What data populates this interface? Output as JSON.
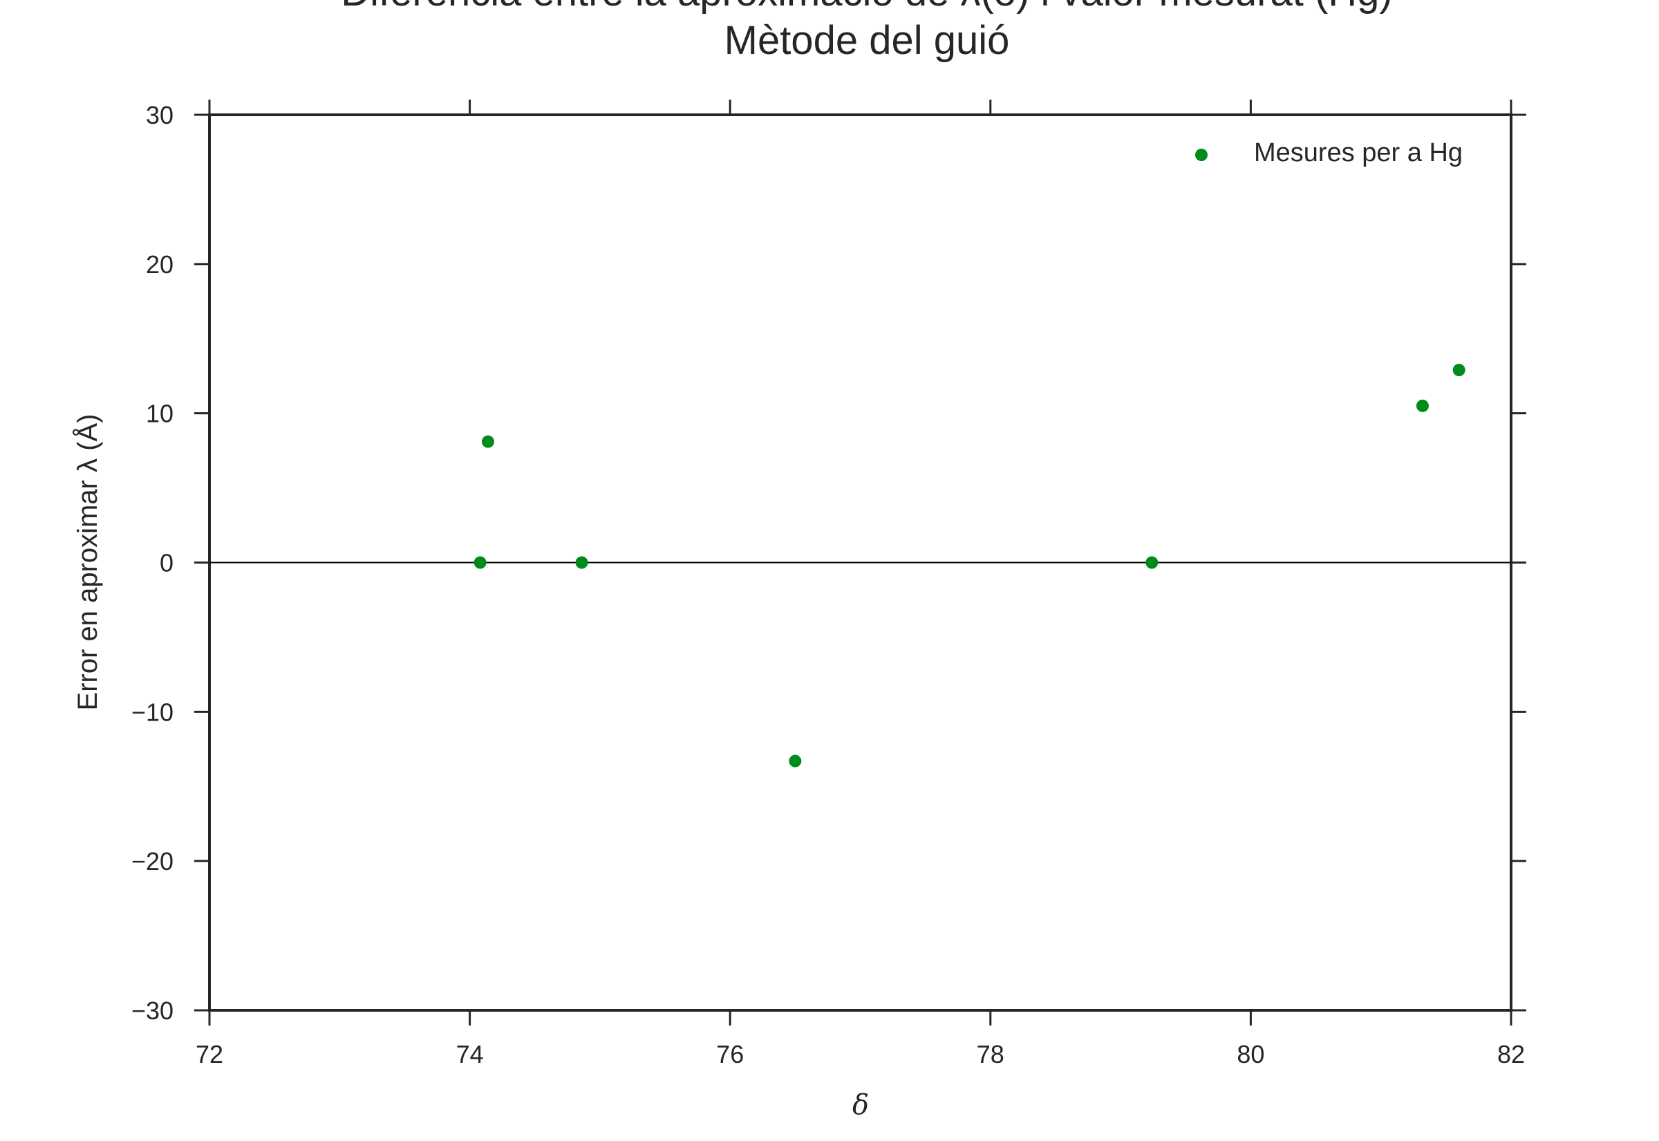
{
  "chart_data": {
    "type": "scatter",
    "title": [
      "Diferència entre la aproximació de λ(δ) i valor mesurat (Hg)",
      "Mètode del guió"
    ],
    "xlabel": "δ",
    "ylabel": "Error en aproximar λ (Å)",
    "xlim": [
      72,
      82
    ],
    "ylim": [
      -30,
      30
    ],
    "xticks": [
      "72",
      "74",
      "76",
      "78",
      "80",
      "82"
    ],
    "yticks": [
      "30",
      "20",
      "10",
      "0",
      "−10",
      "−20",
      "−30"
    ],
    "grid": false,
    "zero_line": true,
    "legend_position": "top-right",
    "series": [
      {
        "name": "Mesures per a Hg",
        "color": "#008b1a",
        "points": [
          {
            "x": 74.08,
            "y": 0.0
          },
          {
            "x": 74.14,
            "y": 8.1
          },
          {
            "x": 74.86,
            "y": 0.0
          },
          {
            "x": 76.5,
            "y": -13.3
          },
          {
            "x": 79.24,
            "y": 0.0
          },
          {
            "x": 81.32,
            "y": 10.5
          },
          {
            "x": 81.6,
            "y": 12.9
          }
        ]
      }
    ]
  }
}
